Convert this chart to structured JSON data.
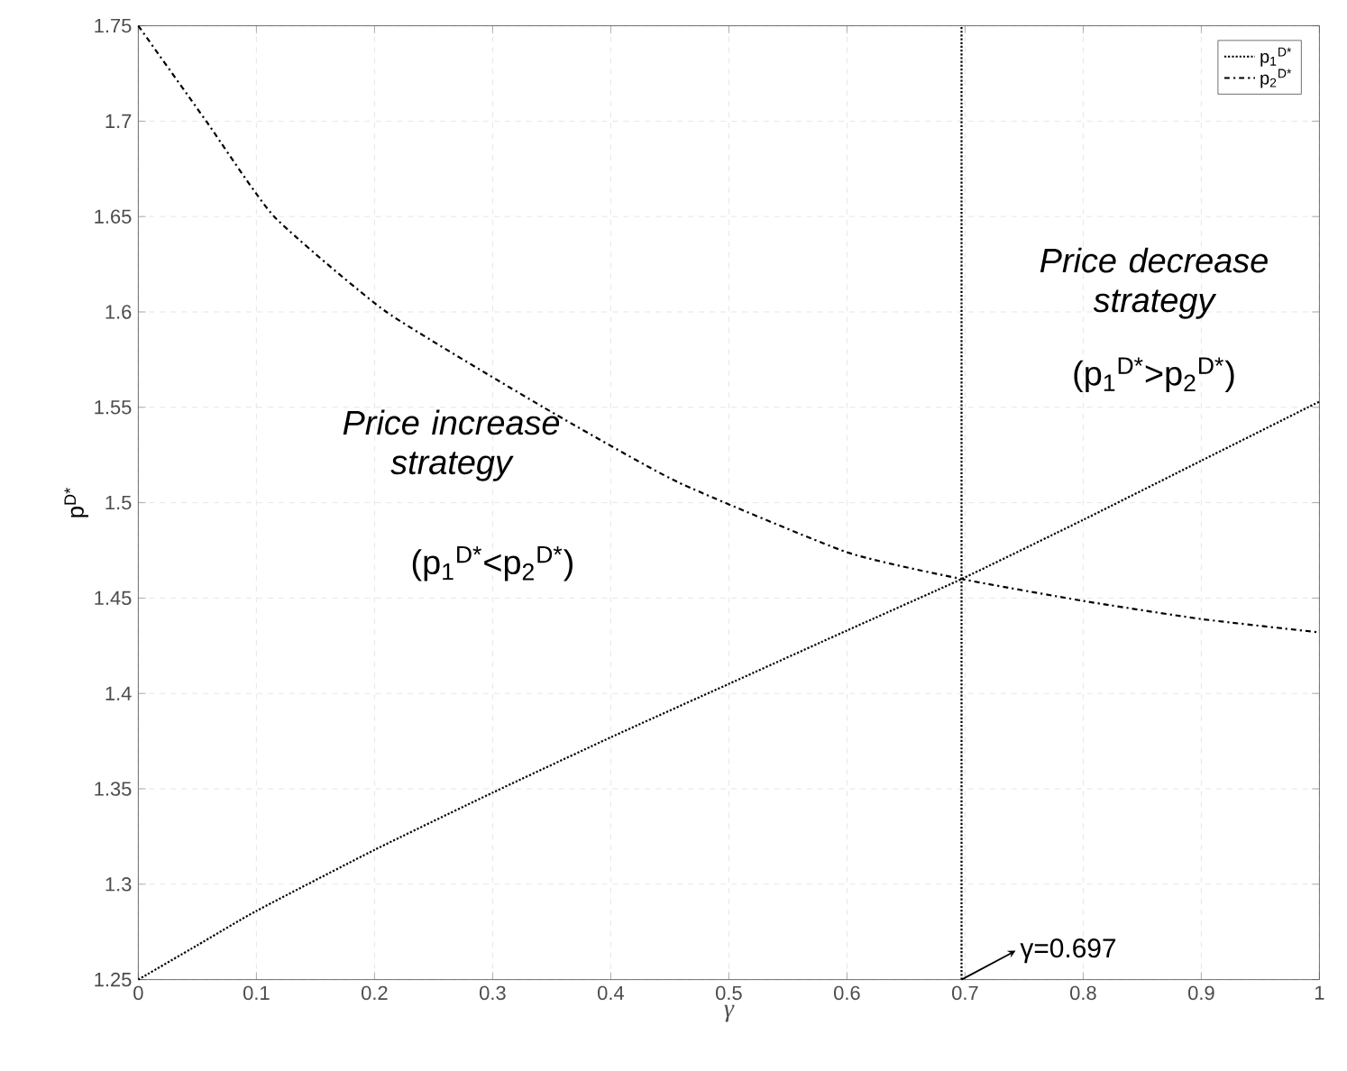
{
  "chart_data": {
    "type": "line",
    "xlabel": "γ",
    "ylabel": "p$^{D*}$",
    "x": [
      0,
      0.05,
      0.1,
      0.2,
      0.3,
      0.4,
      0.5,
      0.6,
      0.697,
      0.8,
      0.9,
      1.0
    ],
    "series": [
      {
        "name": "p$_{1}$$^{D*}$",
        "color": "#000000",
        "line_style": "dotted",
        "values": [
          1.25,
          1.268,
          1.286,
          1.318,
          1.348,
          1.377,
          1.405,
          1.433,
          1.46,
          1.491,
          1.522,
          1.553
        ]
      },
      {
        "name": "p$_{2}$$^{D*}$",
        "color": "#000000",
        "line_style": "dashdot",
        "x": [
          0,
          0.0575,
          0.115,
          0.21,
          0.343,
          0.456,
          0.6,
          0.697,
          0.8,
          0.9,
          1.0
        ],
        "values": [
          1.75,
          1.7,
          1.65,
          1.6,
          1.55,
          1.511,
          1.474,
          1.46,
          1.4485,
          1.439,
          1.432
        ]
      }
    ],
    "xlim": [
      0,
      1
    ],
    "ylim": [
      1.25,
      1.75
    ],
    "xticks": [
      0,
      0.1,
      0.2,
      0.3,
      0.4,
      0.5,
      0.6,
      0.7,
      0.8,
      0.9,
      1
    ],
    "yticks": [
      1.25,
      1.3,
      1.35,
      1.4,
      1.45,
      1.5,
      1.55,
      1.6,
      1.65,
      1.7,
      1.75
    ],
    "ref_lines": [
      {
        "axis": "x",
        "value": 0.697,
        "label": "γ=0.697",
        "line_style": "dotted",
        "color": "#000000"
      }
    ],
    "annotations": [
      "Price increase strategy",
      "(p$_{1}$$^{D*}$<p$_{2}$$^{D*}$)",
      "Price decrease strategy",
      "(p$_{1}$$^{D*}$>p$_{2}$$^{D*}$)"
    ],
    "grid": true,
    "legend": "top right"
  }
}
